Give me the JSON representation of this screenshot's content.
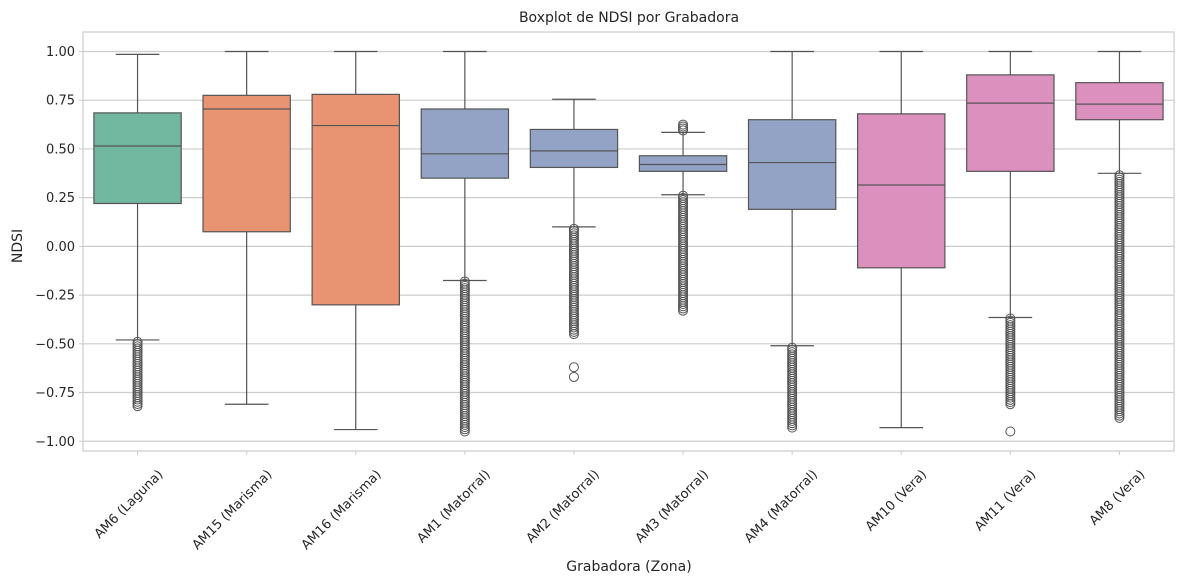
{
  "chart_data": {
    "type": "boxplot",
    "title": "Boxplot de NDSI por Grabadora",
    "xlabel": "Grabadora (Zona)",
    "ylabel": "NDSI",
    "ylim": [
      -1.05,
      1.1
    ],
    "yticks": [
      1.0,
      0.75,
      0.5,
      0.25,
      0.0,
      -0.25,
      -0.5,
      -0.75,
      -1.0
    ],
    "ytick_labels": [
      "1.00",
      "0.75",
      "0.50",
      "0.25",
      "0.00",
      "−0.25",
      "−0.50",
      "−0.75",
      "−1.00"
    ],
    "grid": true,
    "categories": [
      {
        "label": "AM6 (Laguna)",
        "zone": "Laguna",
        "color": "#72b7a0",
        "whisker_low": -0.48,
        "q1": 0.22,
        "median": 0.515,
        "q3": 0.685,
        "whisker_high": 0.985,
        "outliers_low": [
          -0.49,
          -0.82
        ],
        "outliers_high": []
      },
      {
        "label": "AM15 (Marisma)",
        "zone": "Marisma",
        "color": "#e89472",
        "whisker_low": -0.81,
        "q1": 0.075,
        "median": 0.705,
        "q3": 0.775,
        "whisker_high": 1.0,
        "outliers_low": [],
        "outliers_high": []
      },
      {
        "label": "AM16 (Marisma)",
        "zone": "Marisma",
        "color": "#e89472",
        "whisker_low": -0.94,
        "q1": -0.3,
        "median": 0.62,
        "q3": 0.78,
        "whisker_high": 1.0,
        "outliers_low": [],
        "outliers_high": []
      },
      {
        "label": "AM1 (Matorral)",
        "zone": "Matorral",
        "color": "#92a3c6",
        "whisker_low": -0.175,
        "q1": 0.35,
        "median": 0.475,
        "q3": 0.705,
        "whisker_high": 1.0,
        "outliers_low": [
          -0.18,
          -0.95
        ],
        "outliers_high": []
      },
      {
        "label": "AM2 (Matorral)",
        "zone": "Matorral",
        "color": "#92a3c6",
        "whisker_low": 0.1,
        "q1": 0.405,
        "median": 0.49,
        "q3": 0.6,
        "whisker_high": 0.755,
        "outliers_low": [
          0.09,
          -0.45,
          -0.62,
          -0.67
        ],
        "outliers_high": []
      },
      {
        "label": "AM3 (Matorral)",
        "zone": "Matorral",
        "color": "#92a3c6",
        "whisker_low": 0.265,
        "q1": 0.385,
        "median": 0.42,
        "q3": 0.465,
        "whisker_high": 0.585,
        "outliers_low": [
          0.26,
          -0.33
        ],
        "outliers_high": [
          0.595,
          0.625
        ]
      },
      {
        "label": "AM4 (Matorral)",
        "zone": "Matorral",
        "color": "#92a3c6",
        "whisker_low": -0.51,
        "q1": 0.19,
        "median": 0.43,
        "q3": 0.65,
        "whisker_high": 1.0,
        "outliers_low": [
          -0.52,
          -0.93
        ],
        "outliers_high": []
      },
      {
        "label": "AM10 (Vera)",
        "zone": "Vera",
        "color": "#dc90be",
        "whisker_low": -0.93,
        "q1": -0.11,
        "median": 0.315,
        "q3": 0.68,
        "whisker_high": 1.0,
        "outliers_low": [],
        "outliers_high": []
      },
      {
        "label": "AM11 (Vera)",
        "zone": "Vera",
        "color": "#dc90be",
        "whisker_low": -0.365,
        "q1": 0.385,
        "median": 0.735,
        "q3": 0.88,
        "whisker_high": 1.0,
        "outliers_low": [
          -0.37,
          -0.81,
          -0.95
        ],
        "outliers_high": []
      },
      {
        "label": "AM8 (Vera)",
        "zone": "Vera",
        "color": "#dc90be",
        "whisker_low": 0.375,
        "q1": 0.65,
        "median": 0.73,
        "q3": 0.84,
        "whisker_high": 1.0,
        "outliers_low": [
          0.365,
          -0.88
        ],
        "outliers_high": []
      }
    ]
  }
}
